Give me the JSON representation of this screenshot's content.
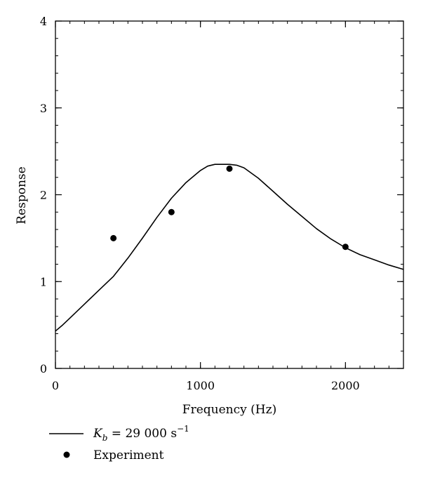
{
  "chart_data": {
    "type": "line",
    "title": "",
    "xlabel": "Frequency (Hz)",
    "ylabel": "Response",
    "xlim": [
      0,
      2400
    ],
    "ylim": [
      0,
      4
    ],
    "x_ticks": [
      0,
      1000,
      2000
    ],
    "x_tick_labels": [
      "0",
      "1000",
      "2000"
    ],
    "x_minor_step": 100,
    "y_ticks": [
      0,
      1,
      2,
      3,
      4
    ],
    "y_tick_labels": [
      "0",
      "1",
      "2",
      "3",
      "4"
    ],
    "y_minor_step": 0.2,
    "grid": false,
    "legend_position": "bottom-left, below plot",
    "series": [
      {
        "name": "K_b = 29 000 s⁻¹",
        "kind": "line",
        "color": "#000000",
        "x": [
          0,
          50,
          100,
          200,
          300,
          400,
          500,
          600,
          700,
          800,
          900,
          1000,
          1050,
          1100,
          1150,
          1200,
          1250,
          1300,
          1400,
          1500,
          1600,
          1700,
          1800,
          1900,
          2000,
          2100,
          2200,
          2300,
          2400
        ],
        "y": [
          0.43,
          0.5,
          0.58,
          0.74,
          0.9,
          1.06,
          1.27,
          1.5,
          1.74,
          1.96,
          2.14,
          2.28,
          2.33,
          2.35,
          2.35,
          2.35,
          2.34,
          2.31,
          2.19,
          2.04,
          1.89,
          1.75,
          1.61,
          1.49,
          1.39,
          1.31,
          1.25,
          1.19,
          1.14
        ]
      },
      {
        "name": "Experiment",
        "kind": "scatter",
        "color": "#000000",
        "x": [
          400,
          800,
          1200,
          2000
        ],
        "y": [
          1.5,
          1.8,
          2.3,
          1.4
        ]
      }
    ]
  },
  "legend": {
    "line_label_main": "K",
    "line_label_sub": "b",
    "line_label_rest": " = 29 000 s",
    "line_label_sup": "−1",
    "scatter_label": "Experiment"
  }
}
